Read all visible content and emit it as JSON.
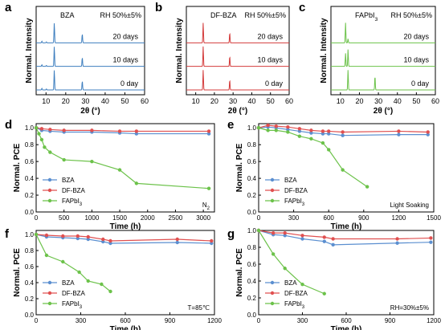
{
  "chart_data": [
    {
      "panel": "a",
      "type": "line",
      "title": "BZA",
      "condition": "RH 50%±5%",
      "xlabel": "2θ (°)",
      "ylabel": "Normal. Intensity",
      "xlim": [
        5,
        60
      ],
      "xticks": [
        "10",
        "20",
        "30",
        "40",
        "50",
        "60"
      ],
      "color": "#3f7fbf",
      "traces": [
        {
          "label": "20 days",
          "peaks": [
            [
              14.2,
              1.0
            ],
            [
              28.4,
              0.45
            ],
            [
              7.9,
              0.08
            ],
            [
              10.2,
              0.05
            ]
          ]
        },
        {
          "label": "10 days",
          "peaks": [
            [
              14.2,
              1.0
            ],
            [
              28.4,
              0.45
            ],
            [
              7.9,
              0.08
            ],
            [
              10.2,
              0.05
            ]
          ]
        },
        {
          "label": "0 day",
          "peaks": [
            [
              14.2,
              1.0
            ],
            [
              28.4,
              0.45
            ],
            [
              7.9,
              0.08
            ],
            [
              10.2,
              0.05
            ]
          ]
        }
      ]
    },
    {
      "panel": "b",
      "type": "line",
      "title": "DF-BZA",
      "condition": "RH 50%±5%",
      "xlabel": "2θ (°)",
      "ylabel": "Normal. Intensity",
      "xlim": [
        5,
        60
      ],
      "xticks": [
        "10",
        "20",
        "30",
        "40",
        "50",
        "60"
      ],
      "color": "#d43c3c",
      "traces": [
        {
          "label": "20 days",
          "peaks": [
            [
              14.0,
              1.0
            ],
            [
              28.2,
              0.5
            ]
          ]
        },
        {
          "label": "10 days",
          "peaks": [
            [
              14.0,
              1.0
            ],
            [
              28.2,
              0.5
            ]
          ]
        },
        {
          "label": "0 day",
          "peaks": [
            [
              14.0,
              1.0
            ],
            [
              28.2,
              0.5
            ]
          ]
        }
      ]
    },
    {
      "panel": "c",
      "type": "line",
      "title": "FAPbI3",
      "condition": "RH 50%±5%",
      "xlabel": "2θ (°)",
      "ylabel": "Normal. Intensity",
      "xlim": [
        5,
        60
      ],
      "xticks": [
        "10",
        "20",
        "30",
        "40",
        "50",
        "60"
      ],
      "color": "#6cc24a",
      "traces": [
        {
          "label": "20 days",
          "peaks": [
            [
              12.7,
              1.0
            ],
            [
              14.0,
              0.2
            ]
          ]
        },
        {
          "label": "10 days",
          "peaks": [
            [
              12.7,
              0.65
            ],
            [
              14.0,
              0.85
            ]
          ]
        },
        {
          "label": "0 day",
          "peaks": [
            [
              14.0,
              1.0
            ],
            [
              28.2,
              0.7
            ]
          ]
        }
      ]
    },
    {
      "panel": "d",
      "type": "line",
      "annotation": "N2",
      "xlabel": "Time (h)",
      "ylabel": "Normal. PCE",
      "xlim": [
        0,
        3200
      ],
      "ylim": [
        0.0,
        1.05
      ],
      "xticks": [
        0,
        500,
        1000,
        1500,
        2000,
        2500,
        3000
      ],
      "yticks": [
        0.0,
        0.2,
        0.4,
        0.6,
        0.8,
        1.0
      ],
      "series": [
        {
          "name": "BZA",
          "color": "#5b8fd0",
          "x": [
            0,
            100,
            250,
            500,
            1000,
            1500,
            1800,
            3100
          ],
          "y": [
            1.0,
            0.97,
            0.96,
            0.95,
            0.95,
            0.94,
            0.93,
            0.93
          ]
        },
        {
          "name": "DF-BZA",
          "color": "#e05050",
          "x": [
            0,
            100,
            250,
            500,
            1000,
            1500,
            1800,
            3100
          ],
          "y": [
            1.0,
            0.99,
            0.98,
            0.97,
            0.97,
            0.96,
            0.96,
            0.96
          ]
        },
        {
          "name": "FAPbI3",
          "color": "#6cc24a",
          "x": [
            0,
            50,
            100,
            150,
            250,
            500,
            1000,
            1500,
            1800,
            3100
          ],
          "y": [
            1.0,
            0.93,
            0.86,
            0.77,
            0.71,
            0.62,
            0.6,
            0.5,
            0.34,
            0.28
          ]
        }
      ]
    },
    {
      "panel": "e",
      "type": "line",
      "annotation": "Light Soaking",
      "xlabel": "Time (h)",
      "ylabel": "Normal. PCE",
      "xlim": [
        0,
        1500
      ],
      "ylim": [
        0.0,
        1.05
      ],
      "xticks": [
        0,
        300,
        600,
        900,
        1200,
        1500
      ],
      "yticks": [
        0.0,
        0.2,
        0.4,
        0.6,
        0.8,
        1.0
      ],
      "series": [
        {
          "name": "BZA",
          "color": "#5b8fd0",
          "x": [
            0,
            80,
            150,
            250,
            350,
            450,
            550,
            600,
            720,
            1200,
            1450
          ],
          "y": [
            1.0,
            1.01,
            1.0,
            0.98,
            0.96,
            0.94,
            0.93,
            0.93,
            0.91,
            0.92,
            0.92
          ]
        },
        {
          "name": "DF-BZA",
          "color": "#e05050",
          "x": [
            0,
            80,
            150,
            250,
            350,
            450,
            550,
            600,
            720,
            1200,
            1450
          ],
          "y": [
            1.0,
            1.03,
            1.02,
            1.01,
            0.99,
            0.97,
            0.96,
            0.96,
            0.95,
            0.96,
            0.95
          ]
        },
        {
          "name": "FAPbI3",
          "color": "#6cc24a",
          "x": [
            0,
            80,
            150,
            250,
            350,
            450,
            550,
            600,
            720,
            930
          ],
          "y": [
            1.0,
            0.97,
            0.97,
            0.95,
            0.9,
            0.87,
            0.82,
            0.74,
            0.5,
            0.3
          ]
        }
      ]
    },
    {
      "panel": "f",
      "type": "line",
      "annotation": "T=85℃",
      "xlabel": "Time (h)",
      "ylabel": "Normal. PCE",
      "xlim": [
        0,
        1200
      ],
      "ylim": [
        0.0,
        1.05
      ],
      "xticks": [
        0,
        300,
        600,
        900,
        1200
      ],
      "yticks": [
        0.0,
        0.2,
        0.4,
        0.6,
        0.8,
        1.0
      ],
      "series": [
        {
          "name": "BZA",
          "color": "#5b8fd0",
          "x": [
            0,
            70,
            180,
            280,
            350,
            450,
            500,
            950,
            1180
          ],
          "y": [
            1.0,
            0.97,
            0.96,
            0.95,
            0.94,
            0.91,
            0.89,
            0.9,
            0.89
          ]
        },
        {
          "name": "DF-BZA",
          "color": "#e05050",
          "x": [
            0,
            70,
            180,
            280,
            350,
            450,
            500,
            950,
            1180
          ],
          "y": [
            1.0,
            0.99,
            0.98,
            0.98,
            0.97,
            0.94,
            0.92,
            0.94,
            0.92
          ]
        },
        {
          "name": "FAPbI3",
          "color": "#6cc24a",
          "x": [
            0,
            70,
            180,
            290,
            350,
            440,
            500
          ],
          "y": [
            1.0,
            0.74,
            0.66,
            0.53,
            0.42,
            0.38,
            0.29
          ]
        }
      ]
    },
    {
      "panel": "g",
      "type": "line",
      "annotation": "RH=30%±5%",
      "xlabel": "Time (h)",
      "ylabel": "Normal. PCE",
      "xlim": [
        0,
        1200
      ],
      "ylim": [
        0.0,
        1.0
      ],
      "xticks": [
        0,
        300,
        600,
        900,
        1200
      ],
      "yticks": [
        0.0,
        0.2,
        0.4,
        0.6,
        0.8,
        1.0
      ],
      "series": [
        {
          "name": "BZA",
          "color": "#5b8fd0",
          "x": [
            0,
            100,
            180,
            300,
            450,
            510,
            950,
            1180
          ],
          "y": [
            1.0,
            0.95,
            0.94,
            0.9,
            0.87,
            0.83,
            0.85,
            0.86
          ]
        },
        {
          "name": "DF-BZA",
          "color": "#e05050",
          "x": [
            0,
            100,
            180,
            300,
            450,
            510,
            950,
            1180
          ],
          "y": [
            1.0,
            0.97,
            0.97,
            0.94,
            0.92,
            0.9,
            0.9,
            0.91
          ]
        },
        {
          "name": "FAPbI3",
          "color": "#6cc24a",
          "x": [
            0,
            100,
            180,
            300,
            450
          ],
          "y": [
            1.0,
            0.72,
            0.55,
            0.36,
            0.25
          ]
        }
      ]
    }
  ]
}
